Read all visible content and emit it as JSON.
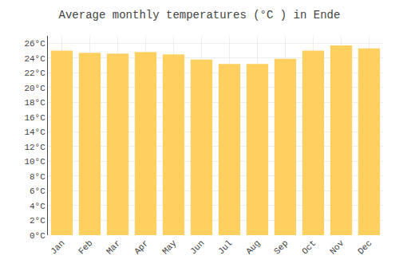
{
  "chart_data": {
    "type": "bar",
    "title": "Average monthly temperatures (°C ) in Ende",
    "categories": [
      "Jan",
      "Feb",
      "Mar",
      "Apr",
      "May",
      "Jun",
      "Jul",
      "Aug",
      "Sep",
      "Oct",
      "Nov",
      "Dec"
    ],
    "values": [
      25.0,
      24.7,
      24.6,
      24.8,
      24.5,
      23.8,
      23.2,
      23.2,
      23.9,
      25.0,
      25.7,
      25.3
    ],
    "color": "#FFD060",
    "ylim": [
      0,
      27
    ],
    "yticks": [
      {
        "value": 0,
        "label": "0°C"
      },
      {
        "value": 2,
        "label": "2°C"
      },
      {
        "value": 4,
        "label": "4°C"
      },
      {
        "value": 6,
        "label": "6°C"
      },
      {
        "value": 8,
        "label": "8°C"
      },
      {
        "value": 10,
        "label": "10°C"
      },
      {
        "value": 12,
        "label": "12°C"
      },
      {
        "value": 14,
        "label": "14°C"
      },
      {
        "value": 16,
        "label": "16°C"
      },
      {
        "value": 18,
        "label": "18°C"
      },
      {
        "value": 20,
        "label": "20°C"
      },
      {
        "value": 22,
        "label": "22°C"
      },
      {
        "value": 24,
        "label": "24°C"
      },
      {
        "value": 26,
        "label": "26°C"
      }
    ],
    "grid": true
  }
}
